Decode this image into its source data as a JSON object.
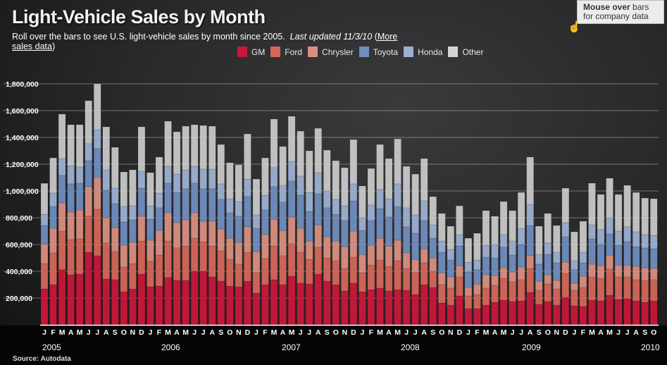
{
  "header": {
    "title": "Light-Vehicle Sales by Month",
    "subtitle": "Roll over the bars to see U.S. light-vehicle sales by month since 2005.",
    "updated": "Last updated 11/3/10",
    "link_open": "(",
    "link": "More sales data",
    "link_close": ")"
  },
  "tooltip": {
    "bold": "Mouse over",
    "text": " bars for company data"
  },
  "source": "Source: Autodata",
  "colors": {
    "GM": "#c8173a",
    "Ford": "#d4675a",
    "Chrysler": "#d98f80",
    "Toyota": "#6f8dbf",
    "Honda": "#9cb0d2",
    "Other": "#d4d4d4"
  },
  "chart_data": {
    "type": "bar",
    "stacked": true,
    "title": "Light-Vehicle Sales by Month",
    "legend_position": "top",
    "grid": true,
    "ylim": [
      0,
      1900000
    ],
    "yticks": [
      "200,000",
      "400,000",
      "600,000",
      "800,000",
      "1,000,000",
      "1,200,000",
      "1,400,000",
      "1,600,000",
      "1,800,000"
    ],
    "ytick_values": [
      200000,
      400000,
      600000,
      800000,
      1000000,
      1200000,
      1400000,
      1600000,
      1800000
    ],
    "month_labels": [
      "J",
      "F",
      "M",
      "A",
      "M",
      "J",
      "J",
      "A",
      "S",
      "O",
      "N",
      "D",
      "J",
      "F",
      "M",
      "A",
      "M",
      "J",
      "J",
      "A",
      "S",
      "O",
      "N",
      "D",
      "J",
      "F",
      "M",
      "A",
      "M",
      "J",
      "J",
      "A",
      "S",
      "O",
      "N",
      "D",
      "J",
      "F",
      "M",
      "A",
      "M",
      "J",
      "J",
      "A",
      "S",
      "O",
      "N",
      "D",
      "J",
      "F",
      "M",
      "A",
      "M",
      "J",
      "J",
      "A",
      "S",
      "O",
      "N",
      "D",
      "J",
      "F",
      "M",
      "A",
      "M",
      "J",
      "J",
      "A",
      "S",
      "O"
    ],
    "year_labels": [
      "2005",
      "2006",
      "2007",
      "2008",
      "2009",
      "2010"
    ],
    "series": [
      {
        "name": "GM",
        "values": [
          268000,
          300000,
          411000,
          374000,
          379000,
          542000,
          516000,
          342000,
          337000,
          247000,
          268000,
          379000,
          284000,
          289000,
          353000,
          332000,
          332000,
          400000,
          400000,
          358000,
          326000,
          289000,
          284000,
          326000,
          237000,
          300000,
          337000,
          300000,
          363000,
          311000,
          305000,
          379000,
          326000,
          300000,
          253000,
          311000,
          247000,
          263000,
          274000,
          253000,
          263000,
          258000,
          226000,
          300000,
          279000,
          163000,
          147000,
          216000,
          121000,
          121000,
          147000,
          168000,
          184000,
          174000,
          179000,
          242000,
          153000,
          174000,
          147000,
          205000,
          142000,
          137000,
          184000,
          179000,
          221000,
          189000,
          195000,
          179000,
          168000,
          179000
        ]
      },
      {
        "name": "Ford",
        "values": [
          190000,
          237000,
          289000,
          263000,
          263000,
          269000,
          347000,
          269000,
          210000,
          185000,
          190000,
          247000,
          190000,
          232000,
          273000,
          242000,
          257000,
          247000,
          221000,
          231000,
          227000,
          200000,
          169000,
          216000,
          152000,
          195000,
          252000,
          216000,
          242000,
          231000,
          184000,
          200000,
          174000,
          179000,
          168000,
          194000,
          142000,
          184000,
          210000,
          184000,
          216000,
          163000,
          163000,
          163000,
          121000,
          137000,
          127000,
          142000,
          95000,
          105000,
          127000,
          127000,
          163000,
          147000,
          158000,
          179000,
          105000,
          131000,
          121000,
          179000,
          116000,
          142000,
          174000,
          168000,
          195000,
          169000,
          163000,
          158000,
          164000,
          158000
        ]
      },
      {
        "name": "Chrysler",
        "values": [
          144000,
          184000,
          211000,
          205000,
          216000,
          221000,
          237000,
          189000,
          179000,
          163000,
          158000,
          185000,
          158000,
          184000,
          211000,
          189000,
          195000,
          190000,
          153000,
          185000,
          163000,
          158000,
          163000,
          190000,
          158000,
          179000,
          200000,
          189000,
          200000,
          179000,
          137000,
          168000,
          158000,
          147000,
          163000,
          195000,
          137000,
          148000,
          163000,
          152000,
          153000,
          116000,
          100000,
          105000,
          100000,
          89000,
          84000,
          84000,
          63000,
          79000,
          100000,
          73000,
          79000,
          74000,
          95000,
          95000,
          68000,
          69000,
          64000,
          84000,
          53000,
          84000,
          95000,
          95000,
          105000,
          89000,
          89000,
          100000,
          94000,
          84000
        ]
      },
      {
        "name": "Toyota",
        "values": [
          140000,
          163000,
          205000,
          211000,
          200000,
          194000,
          216000,
          205000,
          179000,
          173000,
          168000,
          210000,
          157000,
          169000,
          221000,
          226000,
          232000,
          221000,
          242000,
          242000,
          221000,
          190000,
          195000,
          226000,
          174000,
          184000,
          243000,
          211000,
          269000,
          247000,
          221000,
          232000,
          216000,
          200000,
          195000,
          226000,
          179000,
          184000,
          221000,
          216000,
          252000,
          195000,
          195000,
          211000,
          147000,
          153000,
          126000,
          147000,
          116000,
          106000,
          131000,
          132000,
          153000,
          126000,
          168000,
          226000,
          127000,
          152000,
          131000,
          190000,
          100000,
          100000,
          189000,
          158000,
          158000,
          148000,
          174000,
          147000,
          148000,
          147000
        ]
      },
      {
        "name": "Honda",
        "values": [
          84000,
          100000,
          126000,
          136000,
          121000,
          127000,
          142000,
          153000,
          116000,
          116000,
          105000,
          126000,
          100000,
          110000,
          126000,
          137000,
          142000,
          126000,
          147000,
          147000,
          116000,
          105000,
          110000,
          131000,
          100000,
          110000,
          142000,
          126000,
          147000,
          143000,
          142000,
          158000,
          126000,
          111000,
          110000,
          127000,
          95000,
          116000,
          143000,
          137000,
          169000,
          142000,
          137000,
          147000,
          100000,
          84000,
          79000,
          85000,
          73000,
          73000,
          90000,
          100000,
          95000,
          105000,
          121000,
          158000,
          73000,
          85000,
          79000,
          105000,
          68000,
          79000,
          105000,
          111000,
          121000,
          105000,
          111000,
          111000,
          100000,
          100000
        ]
      },
      {
        "name": "Other",
        "values": [
          231000,
          263000,
          332000,
          306000,
          316000,
          321000,
          342000,
          321000,
          305000,
          258000,
          269000,
          332000,
          248000,
          269000,
          337000,
          316000,
          326000,
          311000,
          326000,
          321000,
          294000,
          269000,
          274000,
          337000,
          268000,
          279000,
          363000,
          290000,
          337000,
          336000,
          311000,
          331000,
          305000,
          289000,
          285000,
          331000,
          237000,
          273000,
          336000,
          300000,
          336000,
          310000,
          305000,
          316000,
          211000,
          206000,
          174000,
          215000,
          179000,
          200000,
          258000,
          211000,
          247000,
          227000,
          268000,
          353000,
          211000,
          221000,
          200000,
          258000,
          216000,
          232000,
          311000,
          263000,
          295000,
          274000,
          310000,
          294000,
          273000,
          274000
        ]
      }
    ]
  }
}
